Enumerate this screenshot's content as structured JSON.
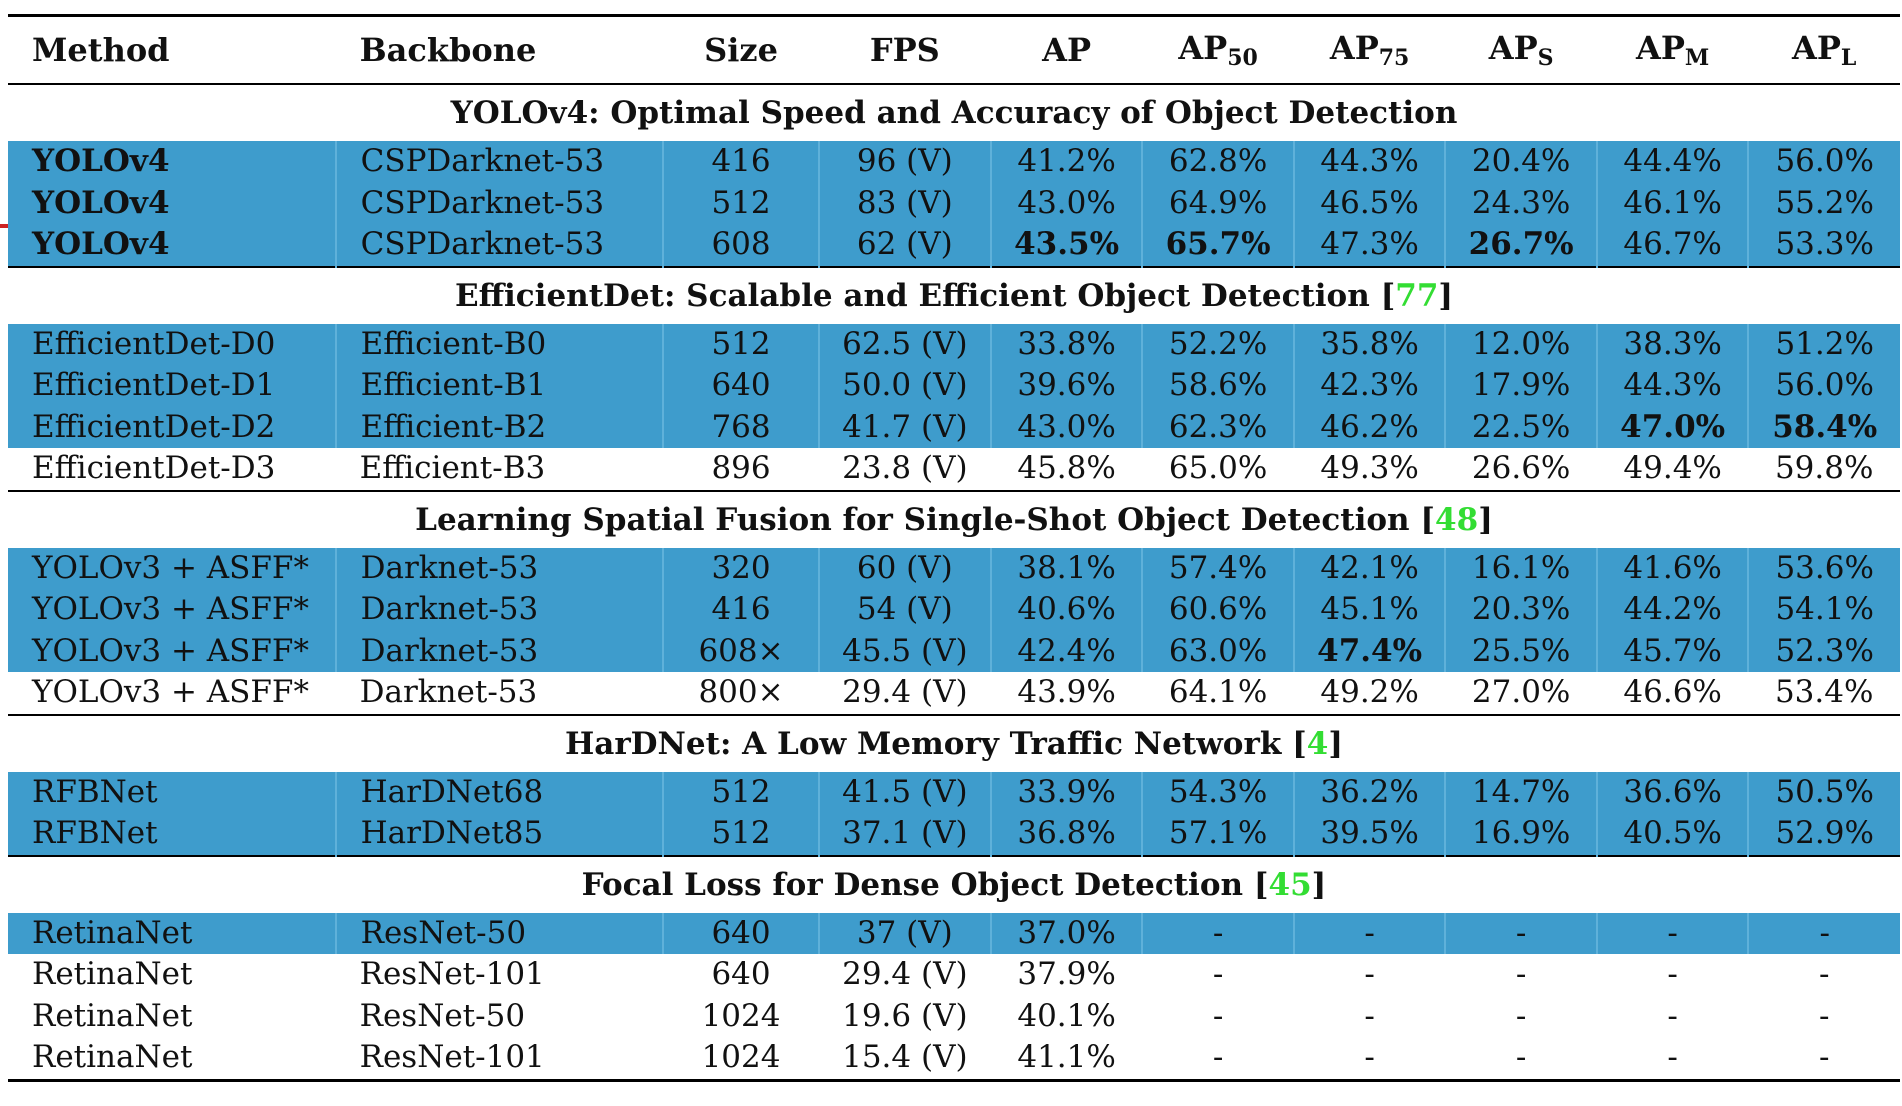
{
  "header": {
    "method": "Method",
    "backbone": "Backbone",
    "size": "Size",
    "fps": "FPS",
    "ap": "AP",
    "ap50": {
      "base": "AP",
      "sub": "50"
    },
    "ap75": {
      "base": "AP",
      "sub": "75"
    },
    "aps": {
      "base": "AP",
      "sub": "S"
    },
    "apm": {
      "base": "AP",
      "sub": "M"
    },
    "apl": {
      "base": "AP",
      "sub": "L"
    }
  },
  "groups": [
    {
      "title": "YOLOv4: Optimal Speed and Accuracy of Object Detection",
      "ref": "",
      "rows": [
        {
          "cells": [
            "YOLOv4",
            "CSPDarknet-53",
            "416",
            "96 (V)",
            "41.2%",
            "62.8%",
            "44.3%",
            "20.4%",
            "44.4%",
            "56.0%"
          ],
          "bold": [
            0
          ],
          "highlight": true
        },
        {
          "cells": [
            "YOLOv4",
            "CSPDarknet-53",
            "512",
            "83 (V)",
            "43.0%",
            "64.9%",
            "46.5%",
            "24.3%",
            "46.1%",
            "55.2%"
          ],
          "bold": [
            0
          ],
          "highlight": true
        },
        {
          "cells": [
            "YOLOv4",
            "CSPDarknet-53",
            "608",
            "62 (V)",
            "43.5%",
            "65.7%",
            "47.3%",
            "26.7%",
            "46.7%",
            "53.3%"
          ],
          "bold": [
            0,
            4,
            5,
            7
          ],
          "highlight": true
        }
      ]
    },
    {
      "title": "EfficientDet: Scalable and Efficient Object Detection",
      "ref": "77",
      "rows": [
        {
          "cells": [
            "EfficientDet-D0",
            "Efficient-B0",
            "512",
            "62.5 (V)",
            "33.8%",
            "52.2%",
            "35.8%",
            "12.0%",
            "38.3%",
            "51.2%"
          ],
          "bold": [],
          "highlight": true
        },
        {
          "cells": [
            "EfficientDet-D1",
            "Efficient-B1",
            "640",
            "50.0 (V)",
            "39.6%",
            "58.6%",
            "42.3%",
            "17.9%",
            "44.3%",
            "56.0%"
          ],
          "bold": [],
          "highlight": true
        },
        {
          "cells": [
            "EfficientDet-D2",
            "Efficient-B2",
            "768",
            "41.7 (V)",
            "43.0%",
            "62.3%",
            "46.2%",
            "22.5%",
            "47.0%",
            "58.4%"
          ],
          "bold": [
            8,
            9
          ],
          "highlight": true
        },
        {
          "cells": [
            "EfficientDet-D3",
            "Efficient-B3",
            "896",
            "23.8 (V)",
            "45.8%",
            "65.0%",
            "49.3%",
            "26.6%",
            "49.4%",
            "59.8%"
          ],
          "bold": [],
          "highlight": false
        }
      ]
    },
    {
      "title": "Learning Spatial Fusion for Single-Shot Object Detection",
      "ref": "48",
      "rows": [
        {
          "cells": [
            "YOLOv3 + ASFF*",
            "Darknet-53",
            "320",
            "60 (V)",
            "38.1%",
            "57.4%",
            "42.1%",
            "16.1%",
            "41.6%",
            "53.6%"
          ],
          "bold": [],
          "highlight": true
        },
        {
          "cells": [
            "YOLOv3 + ASFF*",
            "Darknet-53",
            "416",
            "54 (V)",
            "40.6%",
            "60.6%",
            "45.1%",
            "20.3%",
            "44.2%",
            "54.1%"
          ],
          "bold": [],
          "highlight": true
        },
        {
          "cells": [
            "YOLOv3 + ASFF*",
            "Darknet-53",
            "608×",
            "45.5 (V)",
            "42.4%",
            "63.0%",
            "47.4%",
            "25.5%",
            "45.7%",
            "52.3%"
          ],
          "bold": [
            6
          ],
          "highlight": true
        },
        {
          "cells": [
            "YOLOv3 + ASFF*",
            "Darknet-53",
            "800×",
            "29.4 (V)",
            "43.9%",
            "64.1%",
            "49.2%",
            "27.0%",
            "46.6%",
            "53.4%"
          ],
          "bold": [],
          "highlight": false
        }
      ]
    },
    {
      "title": "HarDNet: A Low Memory Traffic Network",
      "ref": "4",
      "rows": [
        {
          "cells": [
            "RFBNet",
            "HarDNet68",
            "512",
            "41.5 (V)",
            "33.9%",
            "54.3%",
            "36.2%",
            "14.7%",
            "36.6%",
            "50.5%"
          ],
          "bold": [],
          "highlight": true
        },
        {
          "cells": [
            "RFBNet",
            "HarDNet85",
            "512",
            "37.1 (V)",
            "36.8%",
            "57.1%",
            "39.5%",
            "16.9%",
            "40.5%",
            "52.9%"
          ],
          "bold": [],
          "highlight": true
        }
      ]
    },
    {
      "title": "Focal Loss for Dense Object Detection",
      "ref": "45",
      "rows": [
        {
          "cells": [
            "RetinaNet",
            "ResNet-50",
            "640",
            "37 (V)",
            "37.0%",
            "-",
            "-",
            "-",
            "-",
            "-"
          ],
          "bold": [],
          "highlight": true
        },
        {
          "cells": [
            "RetinaNet",
            "ResNet-101",
            "640",
            "29.4 (V)",
            "37.9%",
            "-",
            "-",
            "-",
            "-",
            "-"
          ],
          "bold": [],
          "highlight": false
        },
        {
          "cells": [
            "RetinaNet",
            "ResNet-50",
            "1024",
            "19.6 (V)",
            "40.1%",
            "-",
            "-",
            "-",
            "-",
            "-"
          ],
          "bold": [],
          "highlight": false
        },
        {
          "cells": [
            "RetinaNet",
            "ResNet-101",
            "1024",
            "15.4 (V)",
            "41.1%",
            "-",
            "-",
            "-",
            "-",
            "-"
          ],
          "bold": [],
          "highlight": false
        }
      ]
    }
  ],
  "colors": {
    "highlight": "#3e9ccc",
    "ref": "#33dd33",
    "marker": "#cc2222"
  }
}
